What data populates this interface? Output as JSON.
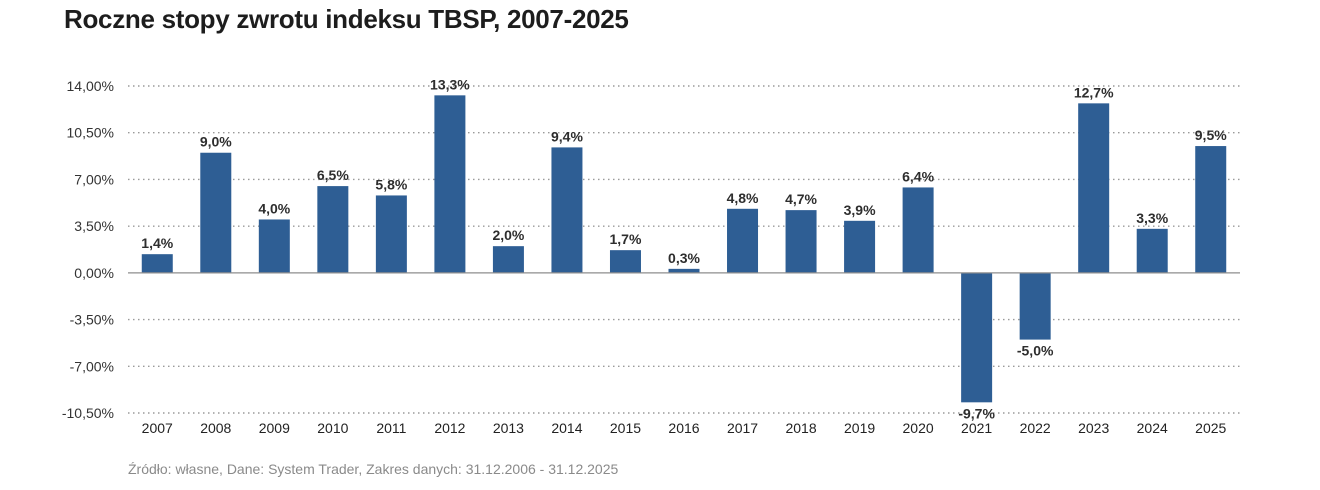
{
  "chart_data": {
    "type": "bar",
    "title": "Roczne stopy zwrotu indeksu TBSP, 2007-2025",
    "xlabel": "",
    "ylabel": "",
    "categories": [
      "2007",
      "2008",
      "2009",
      "2010",
      "2011",
      "2012",
      "2013",
      "2014",
      "2015",
      "2016",
      "2017",
      "2018",
      "2019",
      "2020",
      "2021",
      "2022",
      "2023",
      "2024",
      "2025"
    ],
    "values": [
      1.4,
      9.0,
      4.0,
      6.5,
      5.8,
      13.3,
      2.0,
      9.4,
      1.7,
      0.3,
      4.8,
      4.7,
      3.9,
      6.4,
      -9.7,
      -5.0,
      12.7,
      3.3,
      9.5
    ],
    "value_labels": [
      "1,4%",
      "9,0%",
      "4,0%",
      "6,5%",
      "5,8%",
      "13,3%",
      "2,0%",
      "9,4%",
      "1,7%",
      "0,3%",
      "4,8%",
      "4,7%",
      "3,9%",
      "6,4%",
      "-9,7%",
      "-5,0%",
      "12,7%",
      "3,3%",
      "9,5%"
    ],
    "yticks": [
      14,
      10.5,
      7,
      3.5,
      0,
      -3.5,
      -7,
      -10.5
    ],
    "ytick_labels": [
      "14,00%",
      "10,50%",
      "7,00%",
      "3,50%",
      "0,00%",
      "-3,50%",
      "-7,00%",
      "-10,50%"
    ],
    "ylim": [
      -10.5,
      14
    ],
    "grid": true,
    "legend": "none",
    "bar_color": "#2e5e94",
    "source": "Źródło: własne, Dane: System Trader, Zakres danych: 31.12.2006 - 31.12.2025"
  }
}
